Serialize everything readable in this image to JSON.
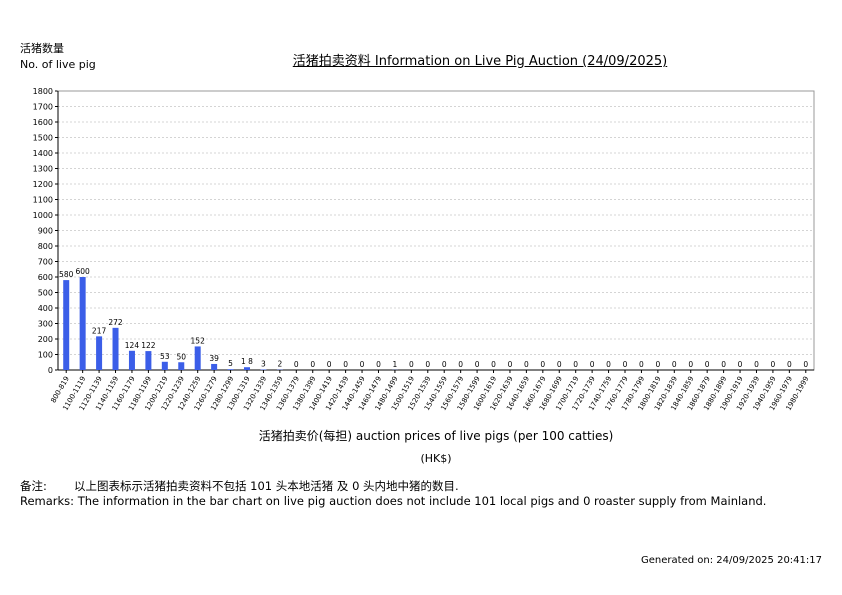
{
  "y_axis_label_zh": "活猪数量",
  "y_axis_label_en": "No. of live pig",
  "remarks": {
    "zh_label": "备注:",
    "zh_text": "以上图表标示活猪拍卖资料不包括 101 头本地活猪 及 0 头内地中猪的数目.",
    "en_text": "Remarks: The information in the bar chart on live pig auction does not include 101 local pigs and 0 roaster supply from Mainland."
  },
  "generated": "Generated on: 24/09/2025 20:41:17",
  "bar_color": "#3b5ee8",
  "chart_data": {
    "type": "bar",
    "title": "活猪拍卖资料 Information on Live Pig Auction (24/09/2025)",
    "xlabel": "活猪拍卖价(每担) auction prices of live pigs (per 100 catties)",
    "unit": "(HK$)",
    "ylabel": "活猪数量 No. of live pig",
    "ylim": [
      0,
      1800
    ],
    "yticks": [
      0,
      100,
      200,
      300,
      400,
      500,
      600,
      700,
      800,
      900,
      1000,
      1100,
      1200,
      1300,
      1400,
      1500,
      1600,
      1700,
      1800
    ],
    "grid": true,
    "categories": [
      "800-819",
      "1100-1119",
      "1120-1139",
      "1140-1159",
      "1160-1179",
      "1180-1199",
      "1200-1219",
      "1220-1239",
      "1240-1259",
      "1260-1279",
      "1280-1299",
      "1300-1319",
      "1320-1339",
      "1340-1359",
      "1360-1379",
      "1380-1399",
      "1400-1419",
      "1420-1439",
      "1440-1459",
      "1460-1479",
      "1480-1499",
      "1500-1519",
      "1520-1539",
      "1540-1559",
      "1560-1579",
      "1580-1599",
      "1600-1619",
      "1620-1639",
      "1640-1659",
      "1660-1679",
      "1680-1699",
      "1700-1719",
      "1720-1739",
      "1740-1759",
      "1760-1779",
      "1780-1799",
      "1800-1819",
      "1820-1839",
      "1840-1859",
      "1860-1879",
      "1880-1899",
      "1900-1919",
      "1920-1939",
      "1940-1959",
      "1960-1979",
      "1980-1999"
    ],
    "values": [
      580,
      600,
      217,
      272,
      124,
      122,
      53,
      50,
      152,
      39,
      5,
      18,
      3,
      2,
      0,
      0,
      0,
      0,
      0,
      0,
      1,
      0,
      0,
      0,
      0,
      0,
      0,
      0,
      0,
      0,
      0,
      0,
      0,
      0,
      0,
      0,
      0,
      0,
      0,
      0,
      0,
      0,
      0,
      0,
      0,
      0
    ],
    "value_labels": [
      "580",
      "600",
      "217",
      "272",
      "124",
      "122",
      "53",
      "50",
      "152",
      "39",
      "5",
      "1 8",
      "3",
      "2",
      "0",
      "0",
      "0",
      "0",
      "0",
      "0",
      "1",
      "0",
      "0",
      "0",
      "0",
      "0",
      "0",
      "0",
      "0",
      "0",
      "0",
      "0",
      "0",
      "0",
      "0",
      "0",
      "0",
      "0",
      "0",
      "0",
      "0",
      "0",
      "0",
      "0",
      "0",
      "0"
    ]
  }
}
